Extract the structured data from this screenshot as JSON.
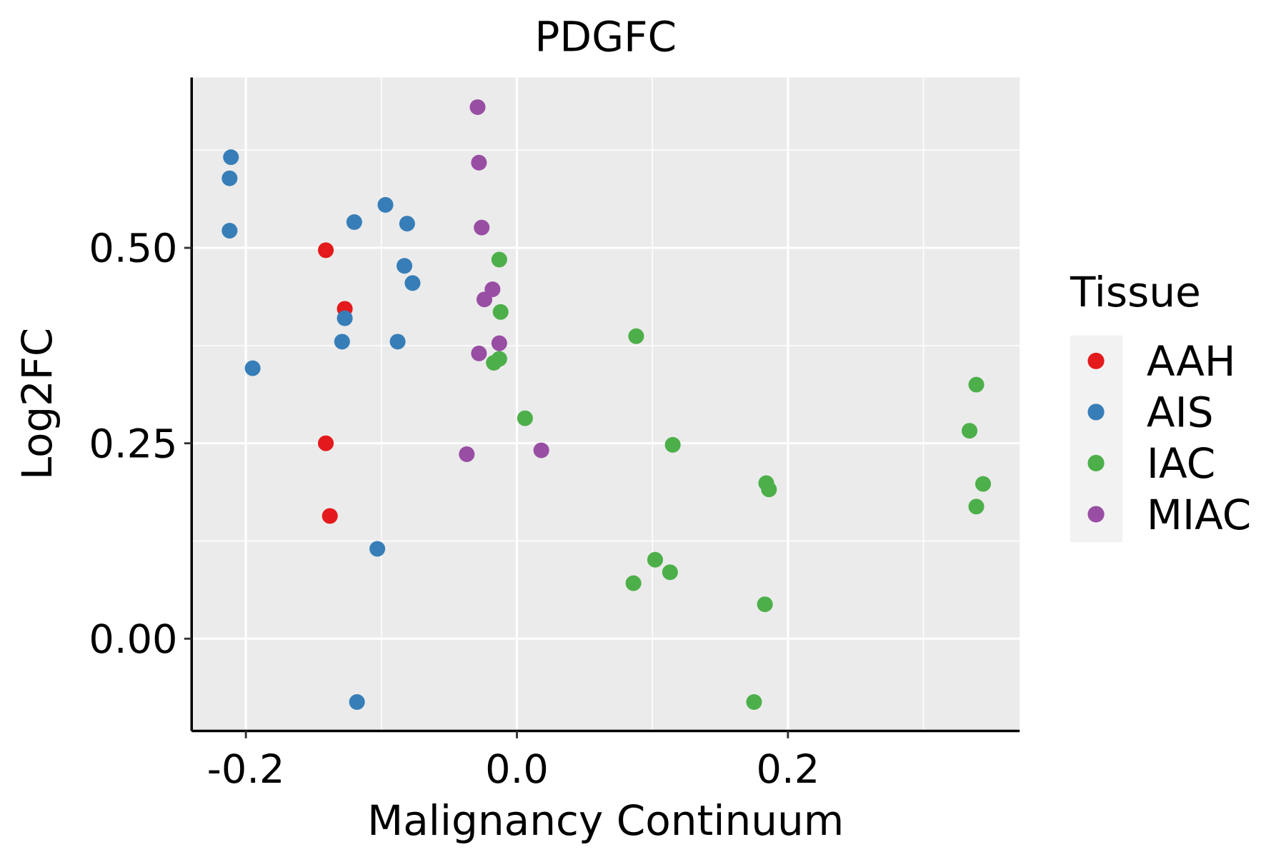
{
  "chart_data": {
    "type": "scatter",
    "title": "PDGFC",
    "xlabel": "Malignancy Continuum",
    "ylabel": "Log2FC",
    "xlim": [
      -0.24,
      0.371
    ],
    "ylim": [
      -0.118,
      0.718
    ],
    "xticks": [
      {
        "value": -0.2,
        "label": "-0.2"
      },
      {
        "value": 0.0,
        "label": "0.0"
      },
      {
        "value": 0.2,
        "label": "0.2"
      }
    ],
    "yticks": [
      {
        "value": 0.0,
        "label": "0.00"
      },
      {
        "value": 0.25,
        "label": "0.25"
      },
      {
        "value": 0.5,
        "label": "0.50"
      }
    ],
    "x_minor": [
      -0.1,
      0.1,
      0.3
    ],
    "y_minor": [
      0.125,
      0.375,
      0.625
    ],
    "grid": true,
    "legend": {
      "title": "Tissue",
      "placement": "right"
    },
    "series": [
      {
        "name": "AAH",
        "color": "#E41A1C",
        "points": [
          [
            -0.141,
            0.497
          ],
          [
            -0.127,
            0.422
          ],
          [
            -0.141,
            0.25
          ],
          [
            -0.138,
            0.157
          ]
        ]
      },
      {
        "name": "AIS",
        "color": "#377EB8",
        "points": [
          [
            -0.211,
            0.616
          ],
          [
            -0.212,
            0.589
          ],
          [
            -0.212,
            0.522
          ],
          [
            -0.195,
            0.346
          ],
          [
            -0.12,
            0.533
          ],
          [
            -0.097,
            0.555
          ],
          [
            -0.081,
            0.531
          ],
          [
            -0.083,
            0.477
          ],
          [
            -0.077,
            0.455
          ],
          [
            -0.127,
            0.41
          ],
          [
            -0.129,
            0.38
          ],
          [
            -0.088,
            0.38
          ],
          [
            -0.103,
            0.115
          ],
          [
            -0.118,
            -0.081
          ]
        ]
      },
      {
        "name": "IAC",
        "color": "#4DAF4A",
        "points": [
          [
            -0.013,
            0.485
          ],
          [
            -0.012,
            0.418
          ],
          [
            -0.017,
            0.353
          ],
          [
            -0.013,
            0.358
          ],
          [
            0.006,
            0.282
          ],
          [
            0.088,
            0.387
          ],
          [
            0.115,
            0.248
          ],
          [
            0.086,
            0.071
          ],
          [
            0.102,
            0.101
          ],
          [
            0.113,
            0.085
          ],
          [
            0.184,
            0.199
          ],
          [
            0.186,
            0.191
          ],
          [
            0.183,
            0.044
          ],
          [
            0.175,
            -0.081
          ],
          [
            0.339,
            0.325
          ],
          [
            0.334,
            0.266
          ],
          [
            0.344,
            0.198
          ],
          [
            0.339,
            0.169
          ]
        ]
      },
      {
        "name": "MIAC",
        "color": "#984EA3",
        "points": [
          [
            -0.029,
            0.68
          ],
          [
            -0.028,
            0.609
          ],
          [
            -0.026,
            0.526
          ],
          [
            -0.018,
            0.447
          ],
          [
            -0.024,
            0.434
          ],
          [
            -0.013,
            0.378
          ],
          [
            -0.028,
            0.365
          ],
          [
            -0.037,
            0.236
          ],
          [
            0.018,
            0.241
          ]
        ]
      }
    ]
  }
}
